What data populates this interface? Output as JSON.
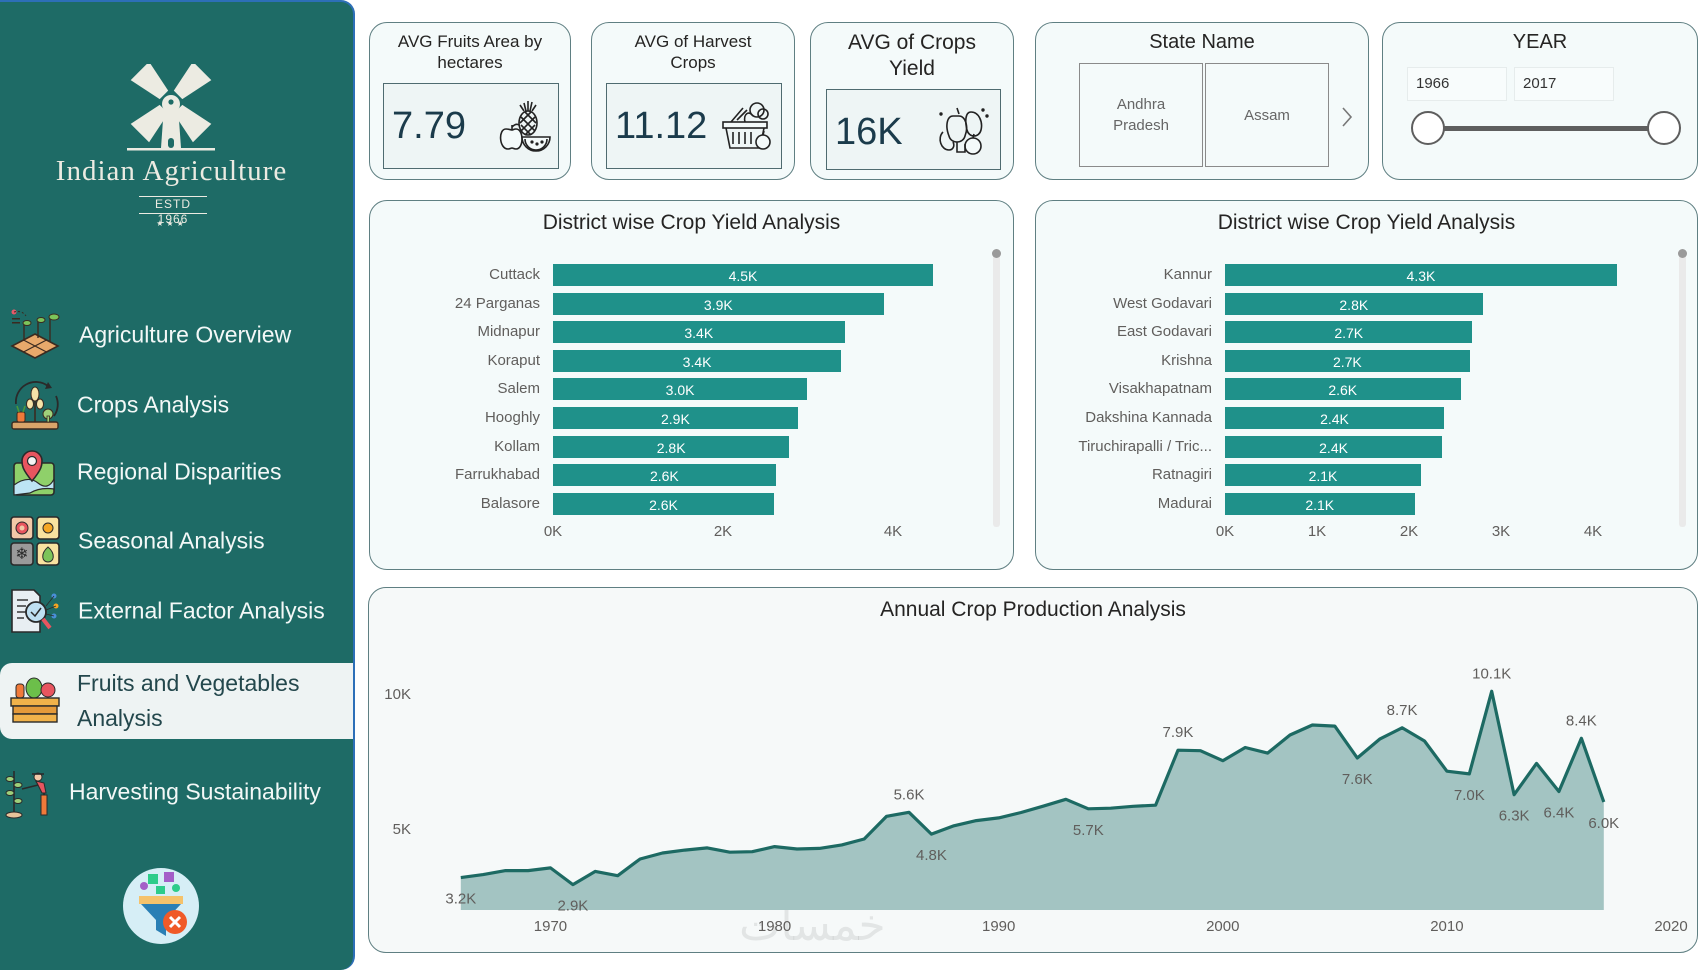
{
  "app": {
    "title": "Indian Agriculture",
    "estd": "ESTD 1966",
    "stars": "★★★"
  },
  "sidebar": {
    "items": [
      {
        "label": "Agriculture Overview",
        "icon": "agriculture-field-icon",
        "active": false
      },
      {
        "label": "Crops Analysis",
        "icon": "wheat-cycle-icon",
        "active": false
      },
      {
        "label": "Regional Disparities",
        "icon": "map-pin-icon",
        "active": false
      },
      {
        "label": "Seasonal Analysis",
        "icon": "seasons-grid-icon",
        "active": false
      },
      {
        "label": "External Factor Analysis",
        "icon": "document-magnifier-icon",
        "active": false
      },
      {
        "label": "Fruits and Vegetables Analysis",
        "icon": "vegetable-crate-icon",
        "active": true
      },
      {
        "label": "Harvesting Sustainability",
        "icon": "farmer-plant-icon",
        "active": false
      }
    ],
    "clear_filters_icon": "clear-filter-icon"
  },
  "kpis": [
    {
      "title": "AVG Fruits Area by hectares",
      "value": "7.79",
      "icon": "fruits-icon"
    },
    {
      "title": "AVG of Harvest Crops",
      "value": "11.12",
      "icon": "harvest-basket-icon"
    },
    {
      "title": "AVG of Crops Yield",
      "value": "16K",
      "icon": "vegetables-icon"
    }
  ],
  "state_filter": {
    "title": "State Name",
    "options": [
      "Andhra Pradesh",
      "Assam"
    ],
    "next_icon": "chevron-right-icon"
  },
  "year_filter": {
    "title": "YEAR",
    "from": "1966",
    "to": "2017",
    "range": [
      1966,
      2017
    ]
  },
  "chart_data": [
    {
      "type": "bar",
      "orientation": "horizontal",
      "title": "District wise Crop Yield Analysis",
      "categories": [
        "Cuttack",
        "24 Parganas",
        "Midnapur",
        "Koraput",
        "Salem",
        "Hooghly",
        "Kollam",
        "Farrukhabad",
        "Balasore"
      ],
      "values": [
        4470,
        3890,
        3430,
        3390,
        2990,
        2880,
        2780,
        2620,
        2600
      ],
      "value_labels": [
        "4.5K",
        "3.9K",
        "3.4K",
        "3.4K",
        "3.0K",
        "2.9K",
        "2.8K",
        "2.6K",
        "2.6K"
      ],
      "xticks": [
        {
          "value": 0,
          "label": "0K"
        },
        {
          "value": 2000,
          "label": "2K"
        },
        {
          "value": 4000,
          "label": "4K"
        }
      ],
      "xlabel": "",
      "ylabel": "",
      "grid": false,
      "scrollable": true
    },
    {
      "type": "bar",
      "orientation": "horizontal",
      "title": "District wise Crop Yield Analysis",
      "categories": [
        "Kannur",
        "West Godavari",
        "East Godavari",
        "Krishna",
        "Visakhapatnam",
        "Dakshina Kannada",
        "Tiruchirapalli / Tric...",
        "Ratnagiri",
        "Madurai"
      ],
      "values": [
        4260,
        2800,
        2690,
        2660,
        2560,
        2380,
        2360,
        2130,
        2060
      ],
      "value_labels": [
        "4.3K",
        "2.8K",
        "2.7K",
        "2.7K",
        "2.6K",
        "2.4K",
        "2.4K",
        "2.1K",
        "2.1K"
      ],
      "xticks": [
        {
          "value": 0,
          "label": "0K"
        },
        {
          "value": 1000,
          "label": "1K"
        },
        {
          "value": 2000,
          "label": "2K"
        },
        {
          "value": 3000,
          "label": "3K"
        },
        {
          "value": 4000,
          "label": "4K"
        }
      ],
      "xlabel": "",
      "ylabel": "",
      "grid": false,
      "scrollable": true
    },
    {
      "type": "area",
      "title": "Annual Crop Production Analysis",
      "x": [
        1966,
        1967,
        1968,
        1969,
        1970,
        1971,
        1972,
        1973,
        1974,
        1975,
        1976,
        1977,
        1978,
        1979,
        1980,
        1981,
        1982,
        1983,
        1984,
        1985,
        1986,
        1987,
        1988,
        1989,
        1990,
        1991,
        1992,
        1993,
        1994,
        1995,
        1996,
        1997,
        1998,
        1999,
        2000,
        2001,
        2002,
        2003,
        2004,
        2005,
        2006,
        2007,
        2008,
        2009,
        2010,
        2011,
        2012,
        2013,
        2014,
        2015,
        2016,
        2017
      ],
      "values": [
        3200,
        3310,
        3460,
        3460,
        3560,
        2940,
        3430,
        3270,
        3890,
        4110,
        4220,
        4300,
        4140,
        4160,
        4350,
        4260,
        4280,
        4410,
        4630,
        5470,
        5620,
        4810,
        5120,
        5310,
        5410,
        5610,
        5850,
        6100,
        5750,
        5770,
        5840,
        5880,
        7920,
        7900,
        7530,
        8020,
        7810,
        8480,
        8850,
        8810,
        7630,
        8330,
        8750,
        8260,
        7140,
        7040,
        10100,
        6270,
        7430,
        6390,
        8360,
        6000
      ],
      "data_labels": [
        {
          "x": 1966,
          "text": "3.2K",
          "position": "below"
        },
        {
          "x": 1971,
          "text": "2.9K",
          "position": "below"
        },
        {
          "x": 1986,
          "text": "5.6K",
          "position": "above"
        },
        {
          "x": 1987,
          "text": "4.8K",
          "position": "below"
        },
        {
          "x": 1994,
          "text": "5.7K",
          "position": "below"
        },
        {
          "x": 1998,
          "text": "7.9K",
          "position": "above"
        },
        {
          "x": 2006,
          "text": "7.6K",
          "position": "below"
        },
        {
          "x": 2008,
          "text": "8.7K",
          "position": "above"
        },
        {
          "x": 2011,
          "text": "7.0K",
          "position": "below"
        },
        {
          "x": 2012,
          "text": "10.1K",
          "position": "above"
        },
        {
          "x": 2013,
          "text": "6.3K",
          "position": "below"
        },
        {
          "x": 2015,
          "text": "6.4K",
          "position": "below"
        },
        {
          "x": 2016,
          "text": "8.4K",
          "position": "above"
        },
        {
          "x": 2017,
          "text": "6.0K",
          "position": "below"
        }
      ],
      "xticks": [
        1970,
        1980,
        1990,
        2000,
        2010,
        2020
      ],
      "yticks": [
        {
          "value": 5000,
          "label": "5K"
        },
        {
          "value": 10000,
          "label": "10K"
        }
      ],
      "xlim": [
        1964,
        2020
      ],
      "ylim": [
        2000,
        12000
      ],
      "xlabel": "",
      "ylabel": "",
      "grid": false,
      "colors": {
        "line": "#1d6a63",
        "fill": "#a3c4c2"
      }
    }
  ],
  "theme": {
    "sidebar_bg": "#1e6b66",
    "bar_color": "#1f918a",
    "area_fill": "#a3c4c2",
    "area_line": "#1d6a63"
  },
  "watermark": "خمسات"
}
